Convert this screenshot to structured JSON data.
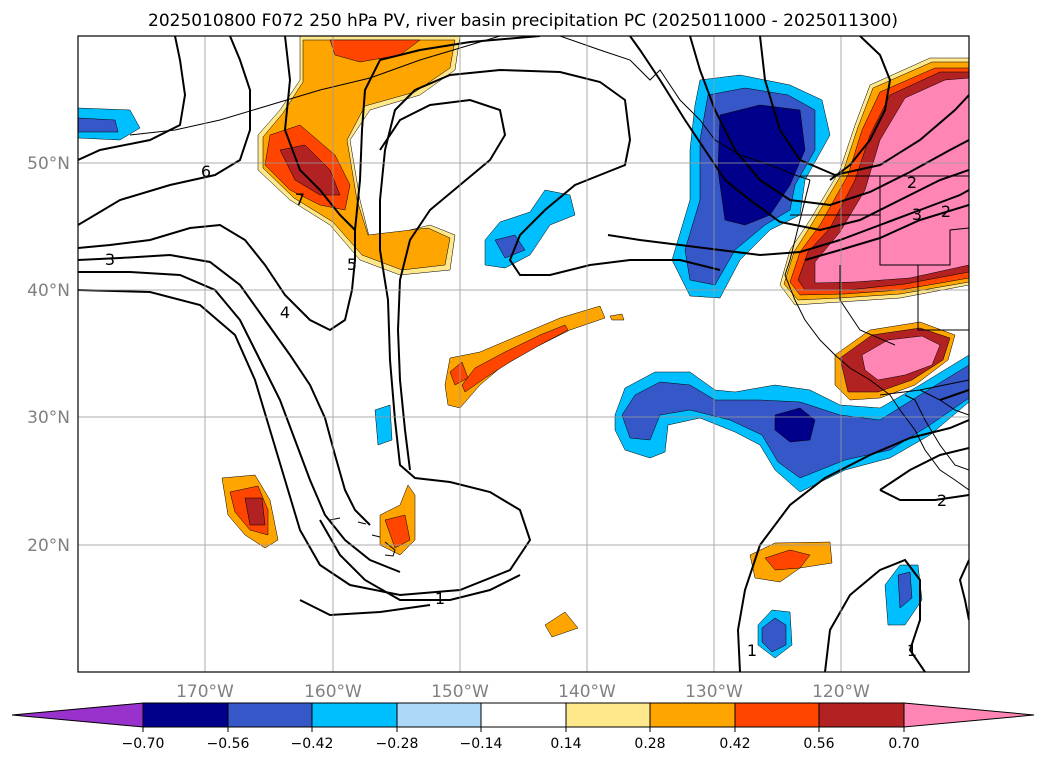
{
  "title": "2025010800 F072 250 hPa PV, river basin precipitation PC (2025011000 - 2025011300)",
  "map": {
    "lon_ticks": [
      "170°W",
      "160°W",
      "150°W",
      "140°W",
      "130°W",
      "120°W"
    ],
    "lat_ticks": [
      "50°N",
      "40°N",
      "30°N",
      "20°N"
    ],
    "grid": true,
    "contour_labels": [
      "6",
      "7",
      "3",
      "5",
      "4",
      "1",
      "1",
      "1",
      "2",
      "2",
      "3",
      "2"
    ]
  },
  "colorbar": {
    "orientation": "horizontal",
    "extend": "both",
    "tick_labels": [
      "−0.70",
      "−0.56",
      "−0.42",
      "−0.28",
      "−0.14",
      "0.14",
      "0.28",
      "0.42",
      "0.56",
      "0.70"
    ],
    "colors": {
      "under": "#9932cc",
      "bins": [
        "#00008b",
        "#3557c8",
        "#00bfff",
        "#add8f7",
        "#ffffff",
        "#ffe88c",
        "#ffa500",
        "#ff4500",
        "#b22222",
        "#ff85b4"
      ],
      "over": "#ff85b4"
    }
  }
}
